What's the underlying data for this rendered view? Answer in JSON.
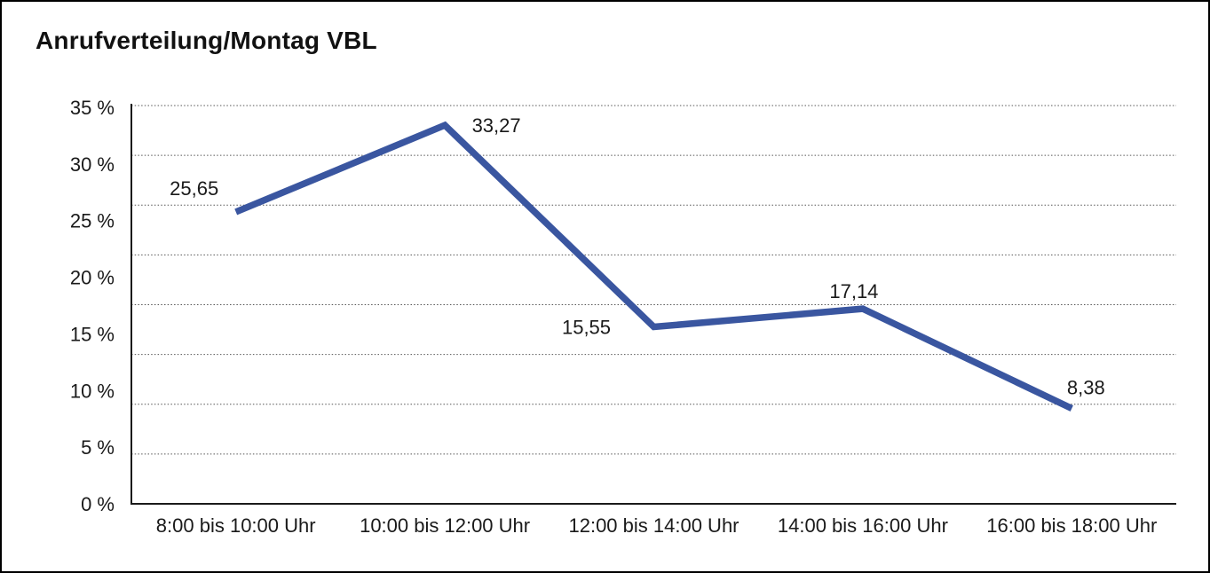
{
  "page": {
    "background": "#ffffff",
    "border_color": "#000000"
  },
  "chart_data": {
    "type": "line",
    "title": "Anrufverteilung/Montag VBL",
    "categories": [
      "8:00 bis 10:00 Uhr",
      "10:00 bis 12:00 Uhr",
      "12:00 bis 14:00 Uhr",
      "14:00 bis 16:00 Uhr",
      "16:00 bis 18:00 Uhr"
    ],
    "series": [
      {
        "values": [
          25.65,
          33.27,
          15.55,
          17.14,
          8.38
        ],
        "labels": [
          "25,65",
          "33,27",
          "15,55",
          "17,14",
          "8,38"
        ],
        "color": "#3a56a0"
      }
    ],
    "y_ticks": [
      "35 %",
      "30 %",
      "25 %",
      "20 %",
      "15 %",
      "10 %",
      "5 %",
      "0 %"
    ],
    "ylim": [
      0,
      35
    ],
    "xlabel": "",
    "ylabel": "",
    "grid": "horizontal-dotted",
    "legend": "none"
  }
}
